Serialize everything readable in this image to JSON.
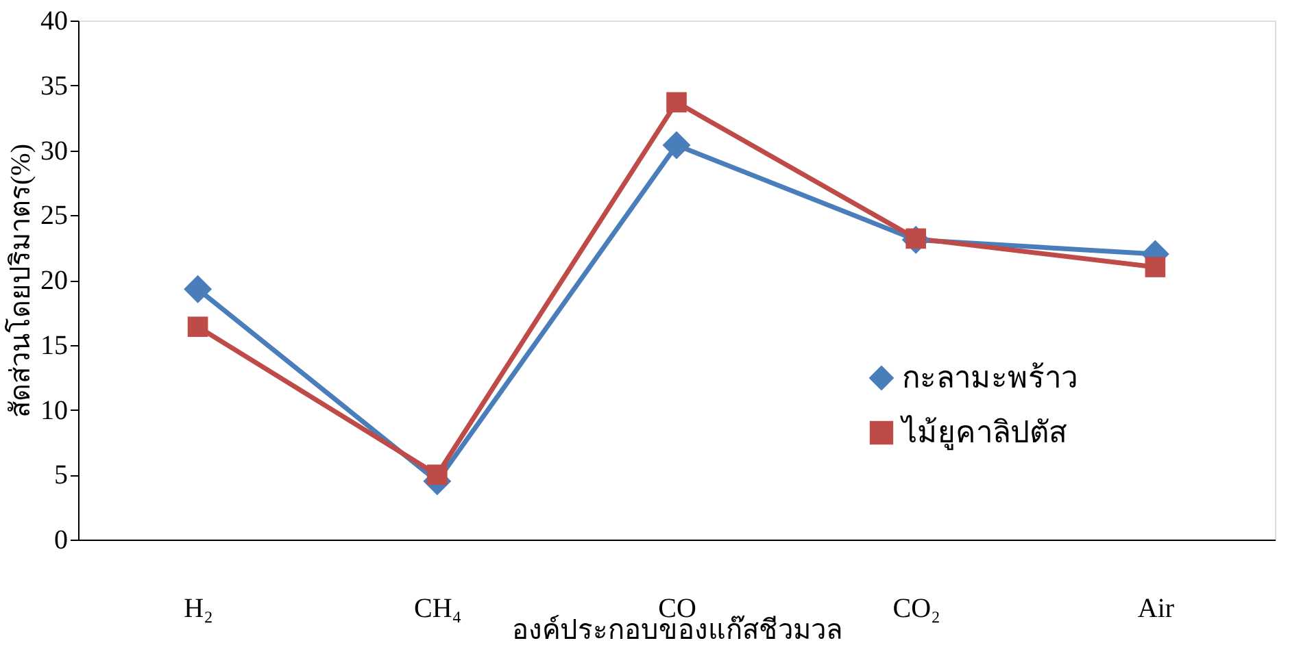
{
  "chart_data": {
    "type": "line",
    "xlabel": "องค์ประกอบของแก๊สชีวมวล",
    "ylabel": "สัดส่วนโดยปริมาตร(%)",
    "categories": [
      "H₂",
      "CH₄",
      "CO",
      "CO₂",
      "Air"
    ],
    "series": [
      {
        "name": "กะลามะพร้าว",
        "color": "#4a7ebb",
        "marker": "diamond",
        "values": [
          19.3,
          4.5,
          30.4,
          23.1,
          22.0
        ]
      },
      {
        "name": "ไม้ยูคาลิปตัส",
        "color": "#be4b48",
        "marker": "square",
        "values": [
          16.4,
          5.0,
          33.7,
          23.2,
          21.0
        ]
      }
    ],
    "ylim": [
      0,
      40
    ],
    "yticks": [
      0,
      5,
      10,
      15,
      20,
      25,
      30,
      35,
      40
    ],
    "grid": false,
    "legend": "right",
    "line_style": "solid"
  }
}
